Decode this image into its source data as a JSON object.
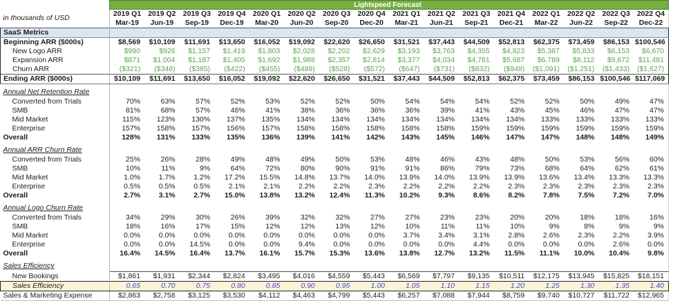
{
  "meta": {
    "banner": "Lightspeed Forecast",
    "units_note": "in thousands of USD"
  },
  "colors": {
    "banner_green": "#76b043",
    "band_blue": "#dce6f1",
    "value_green": "#5ba34f",
    "input_text_blue": "#4545cc",
    "input_bg_yellow": "#fcf3d8"
  },
  "columns": [
    {
      "quarter": "2019 Q1",
      "month": "Mar-19"
    },
    {
      "quarter": "2019 Q2",
      "month": "Jun-19"
    },
    {
      "quarter": "2019 Q3",
      "month": "Sep-19"
    },
    {
      "quarter": "2019 Q4",
      "month": "Dec-19"
    },
    {
      "quarter": "2020 Q1",
      "month": "Mar-20"
    },
    {
      "quarter": "2020 Q2",
      "month": "Jun-20"
    },
    {
      "quarter": "2020 Q3",
      "month": "Sep-20"
    },
    {
      "quarter": "2020 Q4",
      "month": "Dec-20"
    },
    {
      "quarter": "2021 Q1",
      "month": "Mar-21"
    },
    {
      "quarter": "2021 Q2",
      "month": "Jun-21"
    },
    {
      "quarter": "2021 Q3",
      "month": "Sep-21"
    },
    {
      "quarter": "2021 Q4",
      "month": "Dec-21"
    },
    {
      "quarter": "2022 Q1",
      "month": "Mar-22"
    },
    {
      "quarter": "2022 Q2",
      "month": "Jun-22"
    },
    {
      "quarter": "2022 Q3",
      "month": "Sep-22"
    },
    {
      "quarter": "2022 Q4",
      "month": "Dec-22"
    }
  ],
  "rows": [
    {
      "label": "SaaS Metrics",
      "kind": "band",
      "rules": [
        "outline"
      ]
    },
    {
      "label": "Beginning ARR ($000s)",
      "kind": "data",
      "style": "bold",
      "indent": 0,
      "rules": [
        "outline"
      ],
      "values": [
        "$8,569",
        "$10,109",
        "$11,691",
        "$13,650",
        "$16,052",
        "$19,092",
        "$22,620",
        "$26,650",
        "$31,521",
        "$37,443",
        "$44,509",
        "$52,813",
        "$62,375",
        "$73,459",
        "$86,153",
        "$100,546"
      ]
    },
    {
      "label": "New Logo ARR",
      "kind": "data",
      "style": "green",
      "indent": 1,
      "rules": [
        "outline"
      ],
      "values": [
        "$990",
        "$926",
        "$1,157",
        "$1,419",
        "$1,803",
        "$2,028",
        "$2,202",
        "$2,629",
        "$3,193",
        "$3,763",
        "$4,355",
        "$4,823",
        "$5,387",
        "$5,833",
        "$6,153",
        "$6,670"
      ]
    },
    {
      "label": "Expansion ARR",
      "kind": "data",
      "style": "green",
      "indent": 1,
      "rules": [
        "outline"
      ],
      "values": [
        "$871",
        "$1,004",
        "$1,187",
        "$1,405",
        "$1,692",
        "$1,988",
        "$2,357",
        "$2,814",
        "$3,377",
        "$4,034",
        "$4,781",
        "$5,687",
        "$6,789",
        "$8,112",
        "$9,672",
        "$11,481"
      ]
    },
    {
      "label": "Churn ARR",
      "kind": "data",
      "style": "green",
      "indent": 1,
      "rules": [
        "outline"
      ],
      "values": [
        "($321)",
        "($348)",
        "($385)",
        "($422)",
        "($455)",
        "($489)",
        "($528)",
        "($572)",
        "($647)",
        "($731)",
        "($832)",
        "($948)",
        "($1,091)",
        "($1,251)",
        "($1,433)",
        "($1,627)"
      ]
    },
    {
      "label": "Ending ARR ($000s)",
      "kind": "data",
      "style": "bold",
      "indent": 0,
      "rules": [
        "outline",
        "rt",
        "rb"
      ],
      "values": [
        "$10,109",
        "$11,691",
        "$13,650",
        "$16,052",
        "$19,092",
        "$22,620",
        "$26,650",
        "$31,521",
        "$37,443",
        "$44,509",
        "$52,813",
        "$62,375",
        "$73,459",
        "$86,153",
        "$100,546",
        "$117,069"
      ]
    },
    {
      "label": "Annual Net Retention Rate",
      "kind": "section"
    },
    {
      "label": "Converted from Trials",
      "kind": "data",
      "style": "plain",
      "indent": 1,
      "values": [
        "70%",
        "63%",
        "57%",
        "52%",
        "53%",
        "52%",
        "52%",
        "50%",
        "54%",
        "54%",
        "54%",
        "52%",
        "52%",
        "50%",
        "49%",
        "47%"
      ]
    },
    {
      "label": "SMB",
      "kind": "data",
      "style": "plain",
      "indent": 1,
      "values": [
        "81%",
        "68%",
        "57%",
        "46%",
        "41%",
        "38%",
        "36%",
        "36%",
        "36%",
        "39%",
        "41%",
        "43%",
        "45%",
        "46%",
        "47%",
        "47%"
      ]
    },
    {
      "label": "Mid Market",
      "kind": "data",
      "style": "plain",
      "indent": 1,
      "values": [
        "115%",
        "123%",
        "130%",
        "137%",
        "135%",
        "134%",
        "134%",
        "134%",
        "134%",
        "134%",
        "134%",
        "134%",
        "133%",
        "133%",
        "133%",
        "133%"
      ]
    },
    {
      "label": "Enterprise",
      "kind": "data",
      "style": "plain",
      "indent": 1,
      "values": [
        "157%",
        "158%",
        "157%",
        "156%",
        "157%",
        "158%",
        "158%",
        "158%",
        "158%",
        "158%",
        "159%",
        "159%",
        "159%",
        "159%",
        "159%",
        "159%"
      ]
    },
    {
      "label": "Overall",
      "kind": "data",
      "style": "bold",
      "indent": 0,
      "values": [
        "128%",
        "131%",
        "133%",
        "135%",
        "136%",
        "139%",
        "141%",
        "142%",
        "143%",
        "145%",
        "146%",
        "147%",
        "147%",
        "148%",
        "148%",
        "149%"
      ]
    },
    {
      "label": "Annual ARR Churn Rate",
      "kind": "section"
    },
    {
      "label": "Converted from Trials",
      "kind": "data",
      "style": "plain",
      "indent": 1,
      "values": [
        "25%",
        "26%",
        "28%",
        "49%",
        "48%",
        "49%",
        "50%",
        "53%",
        "48%",
        "46%",
        "43%",
        "48%",
        "50%",
        "53%",
        "56%",
        "60%"
      ]
    },
    {
      "label": "SMB",
      "kind": "data",
      "style": "plain",
      "indent": 1,
      "values": [
        "10%",
        "11%",
        "9%",
        "64%",
        "72%",
        "80%",
        "90%",
        "91%",
        "91%",
        "86%",
        "79%",
        "73%",
        "68%",
        "64%",
        "62%",
        "61%"
      ]
    },
    {
      "label": "Mid Market",
      "kind": "data",
      "style": "plain",
      "indent": 1,
      "values": [
        "1.0%",
        "1.7%",
        "1.2%",
        "17.2%",
        "15.5%",
        "14.8%",
        "13.7%",
        "14.0%",
        "13.9%",
        "14.0%",
        "13.9%",
        "13.9%",
        "13.6%",
        "13.4%",
        "13.3%",
        "13.3%"
      ]
    },
    {
      "label": "Enterprise",
      "kind": "data",
      "style": "plain",
      "indent": 1,
      "values": [
        "0.5%",
        "0.5%",
        "0.5%",
        "2.1%",
        "2.1%",
        "2.2%",
        "2.2%",
        "2.3%",
        "2.2%",
        "2.2%",
        "2.2%",
        "2.3%",
        "2.3%",
        "2.3%",
        "2.3%",
        "2.3%"
      ]
    },
    {
      "label": "Overall",
      "kind": "data",
      "style": "bold",
      "indent": 0,
      "values": [
        "2.7%",
        "3.1%",
        "2.7%",
        "15.0%",
        "13.8%",
        "13.2%",
        "12.4%",
        "11.3%",
        "10.2%",
        "9.3%",
        "8.6%",
        "8.2%",
        "7.8%",
        "7.5%",
        "7.2%",
        "7.0%"
      ]
    },
    {
      "label": "Annual Logo Churn Rate",
      "kind": "section"
    },
    {
      "label": "Converted from Trials",
      "kind": "data",
      "style": "plain",
      "indent": 1,
      "values": [
        "34%",
        "29%",
        "30%",
        "26%",
        "39%",
        "32%",
        "32%",
        "27%",
        "27%",
        "23%",
        "23%",
        "20%",
        "20%",
        "18%",
        "18%",
        "16%"
      ]
    },
    {
      "label": "SMB",
      "kind": "data",
      "style": "plain",
      "indent": 1,
      "values": [
        "18%",
        "16%",
        "17%",
        "15%",
        "12%",
        "12%",
        "13%",
        "12%",
        "10%",
        "11%",
        "11%",
        "10%",
        "9%",
        "8%",
        "9%",
        "9%"
      ]
    },
    {
      "label": "Mid Market",
      "kind": "data",
      "style": "plain",
      "indent": 1,
      "values": [
        "0.0%",
        "0.0%",
        "0.0%",
        "0.0%",
        "0.0%",
        "0.0%",
        "0.0%",
        "0.0%",
        "3.7%",
        "3.4%",
        "3.1%",
        "2.8%",
        "2.6%",
        "2.3%",
        "2.2%",
        "3.9%"
      ]
    },
    {
      "label": "Enterprise",
      "kind": "data",
      "style": "plain",
      "indent": 1,
      "values": [
        "0.0%",
        "0.0%",
        "14.5%",
        "0.0%",
        "0.0%",
        "9.4%",
        "0.0%",
        "0.0%",
        "0.0%",
        "0.0%",
        "4.4%",
        "0.0%",
        "0.0%",
        "0.0%",
        "2.6%",
        "0.0%"
      ]
    },
    {
      "label": "Overall",
      "kind": "data",
      "style": "bold",
      "indent": 0,
      "values": [
        "16.4%",
        "14.5%",
        "16.4%",
        "13.7%",
        "16.1%",
        "15.7%",
        "15.3%",
        "13.6%",
        "13.8%",
        "12.7%",
        "13.2%",
        "11.5%",
        "11.1%",
        "10.0%",
        "10.4%",
        "9.8%"
      ]
    },
    {
      "label": "Sales Efficiency",
      "kind": "section"
    },
    {
      "label": "New Bookings",
      "kind": "data",
      "style": "plain",
      "indent": 1,
      "rules": [
        "vt"
      ],
      "values": [
        "$1,861",
        "$1,931",
        "$2,344",
        "$2,824",
        "$3,495",
        "$4,016",
        "$4,559",
        "$5,443",
        "$6,569",
        "$7,797",
        "$9,135",
        "$10,511",
        "$12,175",
        "$13,945",
        "$15,825",
        "$18,151"
      ]
    },
    {
      "label": "Sales Efficiency",
      "kind": "data",
      "style": "input",
      "indent": 1,
      "values": [
        "0.65",
        "0.70",
        "0.75",
        "0.80",
        "0.85",
        "0.90",
        "0.95",
        "1.00",
        "1.05",
        "1.10",
        "1.15",
        "1.20",
        "1.25",
        "1.30",
        "1.35",
        "1.40"
      ]
    },
    {
      "label": "Sales & Marketing Expense",
      "kind": "data",
      "style": "plain",
      "indent": 0,
      "rules": [
        "bl"
      ],
      "values": [
        "$2,863",
        "$2,758",
        "$3,125",
        "$3,530",
        "$4,112",
        "$4,463",
        "$4,799",
        "$5,443",
        "$6,257",
        "$7,088",
        "$7,944",
        "$8,759",
        "$9,740",
        "$10,727",
        "$11,722",
        "$12,965"
      ]
    }
  ]
}
